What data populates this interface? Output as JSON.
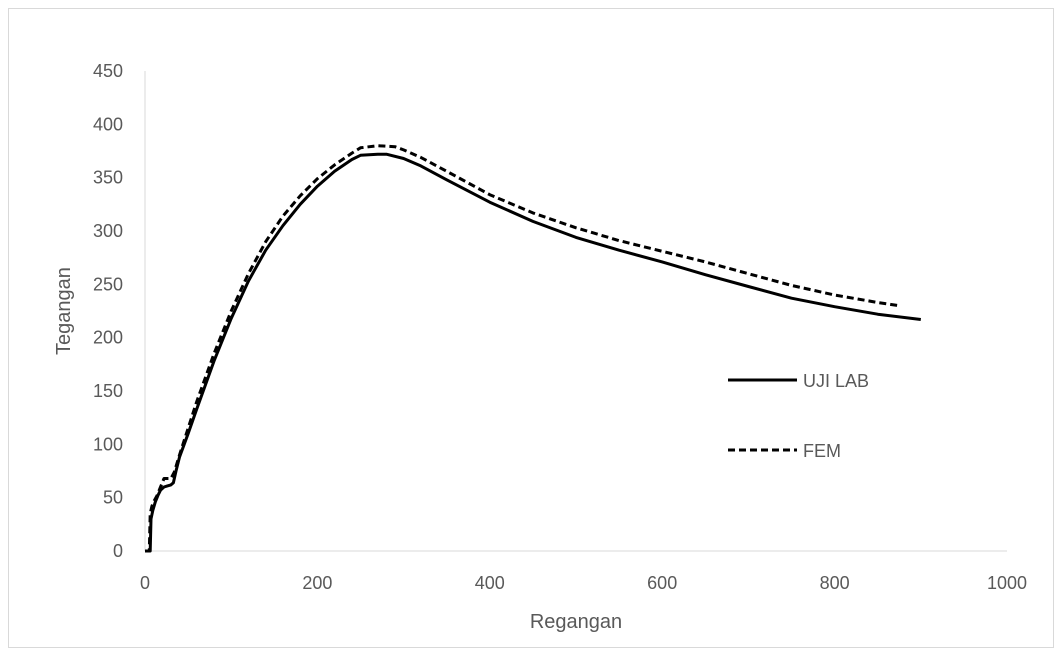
{
  "chart_data": {
    "type": "line",
    "title": "",
    "xlabel": "Regangan",
    "ylabel": "Tegangan",
    "xlim": [
      0,
      1000
    ],
    "ylim": [
      0,
      450
    ],
    "xticks": [
      0,
      200,
      400,
      600,
      800,
      1000
    ],
    "yticks": [
      0,
      50,
      100,
      150,
      200,
      250,
      300,
      350,
      400,
      450
    ],
    "grid": false,
    "legend_position": "right",
    "series": [
      {
        "name": "UJI LAB",
        "style": "solid",
        "color": "#000000",
        "points": [
          [
            0,
            0
          ],
          [
            6,
            0
          ],
          [
            7,
            30
          ],
          [
            9,
            38
          ],
          [
            12,
            46
          ],
          [
            15,
            52
          ],
          [
            18,
            57
          ],
          [
            22,
            60
          ],
          [
            26,
            61
          ],
          [
            30,
            62
          ],
          [
            33,
            64
          ],
          [
            36,
            75
          ],
          [
            40,
            88
          ],
          [
            50,
            110
          ],
          [
            60,
            133
          ],
          [
            80,
            178
          ],
          [
            100,
            218
          ],
          [
            120,
            253
          ],
          [
            140,
            282
          ],
          [
            160,
            305
          ],
          [
            180,
            325
          ],
          [
            200,
            342
          ],
          [
            220,
            356
          ],
          [
            240,
            367
          ],
          [
            250,
            371
          ],
          [
            270,
            372
          ],
          [
            280,
            372
          ],
          [
            300,
            368
          ],
          [
            320,
            361
          ],
          [
            350,
            348
          ],
          [
            400,
            327
          ],
          [
            450,
            309
          ],
          [
            500,
            294
          ],
          [
            550,
            282
          ],
          [
            600,
            271
          ],
          [
            650,
            259
          ],
          [
            700,
            248
          ],
          [
            750,
            237
          ],
          [
            800,
            229
          ],
          [
            850,
            222
          ],
          [
            900,
            217
          ]
        ]
      },
      {
        "name": "FEM",
        "style": "dashed",
        "color": "#000000",
        "points": [
          [
            0,
            0
          ],
          [
            5,
            0
          ],
          [
            6,
            35
          ],
          [
            8,
            42
          ],
          [
            10,
            46
          ],
          [
            14,
            52
          ],
          [
            18,
            60
          ],
          [
            22,
            68
          ],
          [
            26,
            68
          ],
          [
            30,
            68
          ],
          [
            34,
            74
          ],
          [
            40,
            90
          ],
          [
            50,
            115
          ],
          [
            60,
            140
          ],
          [
            80,
            185
          ],
          [
            100,
            225
          ],
          [
            120,
            260
          ],
          [
            140,
            290
          ],
          [
            160,
            314
          ],
          [
            180,
            333
          ],
          [
            200,
            349
          ],
          [
            220,
            362
          ],
          [
            240,
            373
          ],
          [
            250,
            378
          ],
          [
            270,
            380
          ],
          [
            290,
            379
          ],
          [
            300,
            376
          ],
          [
            320,
            369
          ],
          [
            350,
            356
          ],
          [
            400,
            334
          ],
          [
            450,
            317
          ],
          [
            500,
            303
          ],
          [
            550,
            291
          ],
          [
            600,
            281
          ],
          [
            650,
            271
          ],
          [
            700,
            260
          ],
          [
            750,
            249
          ],
          [
            800,
            240
          ],
          [
            850,
            233
          ],
          [
            875,
            230
          ]
        ]
      }
    ]
  }
}
